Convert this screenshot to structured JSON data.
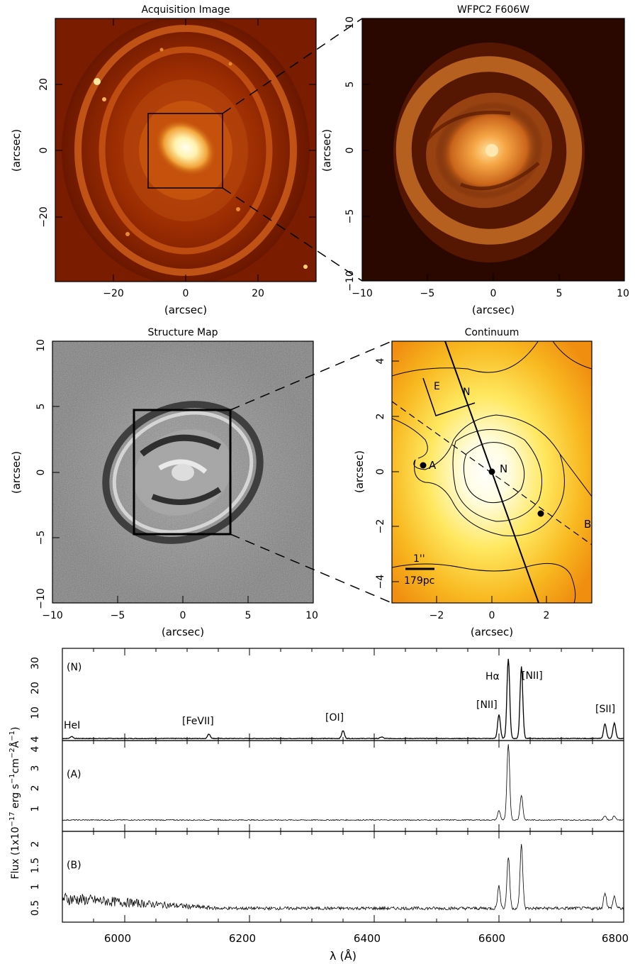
{
  "panels": {
    "acquisition": {
      "title": "Acquisition Image",
      "xlabel": "(arcsec)",
      "ylabel": "(arcsec)",
      "xticks": [
        "−20",
        "0",
        "20"
      ],
      "yticks": [
        "20",
        "0",
        "−20"
      ]
    },
    "wfpc2": {
      "title": "WFPC2 F606W",
      "xlabel": "(arcsec)",
      "ylabel": "(arcsec)",
      "xticks": [
        "−10",
        "−5",
        "0",
        "5",
        "10"
      ],
      "yticks": [
        "10",
        "5",
        "0",
        "−5",
        "−10"
      ]
    },
    "structure": {
      "title": "Structure Map",
      "xlabel": "(arcsec)",
      "ylabel": "(arcsec)",
      "xticks": [
        "−10",
        "−5",
        "0",
        "5",
        "10"
      ],
      "yticks": [
        "10",
        "5",
        "0",
        "−5",
        "−10"
      ]
    },
    "continuum": {
      "title": "Continuum",
      "xlabel": "(arcsec)",
      "ylabel": "(arcsec)",
      "xticks": [
        "−2",
        "0",
        "2"
      ],
      "yticks": [
        "4",
        "2",
        "0",
        "−2",
        "−4"
      ],
      "compass_e": "E",
      "compass_n": "N",
      "point_a": "A",
      "point_n": "N",
      "point_b": "B",
      "scale_angular": "1''",
      "scale_physical": "179pc"
    }
  },
  "spectra": {
    "ylabel_prefix": "Flux (1x10",
    "ylabel_exp1": "−17",
    "ylabel_mid": " erg s",
    "ylabel_exp2": "−1",
    "ylabel_mid2": "cm",
    "ylabel_exp3": "−2",
    "ylabel_unit": "Å",
    "ylabel_exp4": "−1",
    "ylabel_suffix": ")",
    "xlabel": "λ (Å)",
    "xticks": [
      "6000",
      "6200",
      "6400",
      "6600",
      "6800"
    ],
    "labels": {
      "N": "(N)",
      "A": "(A)",
      "B": "(B)",
      "hei": "HeI",
      "fevii": "[FeVII]",
      "oi": "[OI]",
      "nii_left": "[NII]",
      "halpha": "Hα",
      "nii_right": "[NII]",
      "sii": "[SII]"
    },
    "yticks_N": [
      "30",
      "20",
      "10",
      "4"
    ],
    "yticks_A": [
      "4",
      "3",
      "2",
      "1"
    ],
    "yticks_B": [
      "2",
      "1.5",
      "1",
      "0.5"
    ]
  },
  "chart_data": {
    "type": "line",
    "xlim": [
      5900,
      6800
    ],
    "xlabel": "λ (Å)",
    "series": [
      {
        "name": "(N)",
        "ylim": [
          4,
          35
        ],
        "baseline": 2.3,
        "lines": [
          {
            "x": 5915,
            "peak": 3.1
          },
          {
            "x": 6135,
            "peak": 4.0
          },
          {
            "x": 6350,
            "peak": 5.3
          },
          {
            "x": 6412,
            "peak": 2.9
          },
          {
            "x": 6600,
            "peak": 11.5
          },
          {
            "x": 6615,
            "peak": 33.0
          },
          {
            "x": 6636,
            "peak": 30.0
          },
          {
            "x": 6770,
            "peak": 8.0
          },
          {
            "x": 6785,
            "peak": 8.2
          }
        ]
      },
      {
        "name": "(A)",
        "ylim": [
          0,
          4
        ],
        "baseline": 0.35,
        "lines": [
          {
            "x": 6600,
            "peak": 0.8
          },
          {
            "x": 6615,
            "peak": 4.0
          },
          {
            "x": 6636,
            "peak": 1.55
          },
          {
            "x": 6770,
            "peak": 0.55
          },
          {
            "x": 6785,
            "peak": 0.55
          }
        ]
      },
      {
        "name": "(B)",
        "ylim": [
          0.3,
          2.2
        ],
        "baseline": 0.45,
        "lines": [
          {
            "x": 6600,
            "peak": 1.0
          },
          {
            "x": 6615,
            "peak": 1.75
          },
          {
            "x": 6636,
            "peak": 2.05
          },
          {
            "x": 6770,
            "peak": 0.85
          },
          {
            "x": 6785,
            "peak": 0.75
          }
        ]
      }
    ]
  },
  "colors": {
    "frame": "#000000",
    "galaxy_core": "#fffbe6",
    "galaxy_mid": "#f0962a",
    "galaxy_outer": "#a72600",
    "background": "#5e1200",
    "continuum_core": "#ffffff",
    "continuum_mid": "#fff06a",
    "continuum_outer": "#f59a10"
  }
}
